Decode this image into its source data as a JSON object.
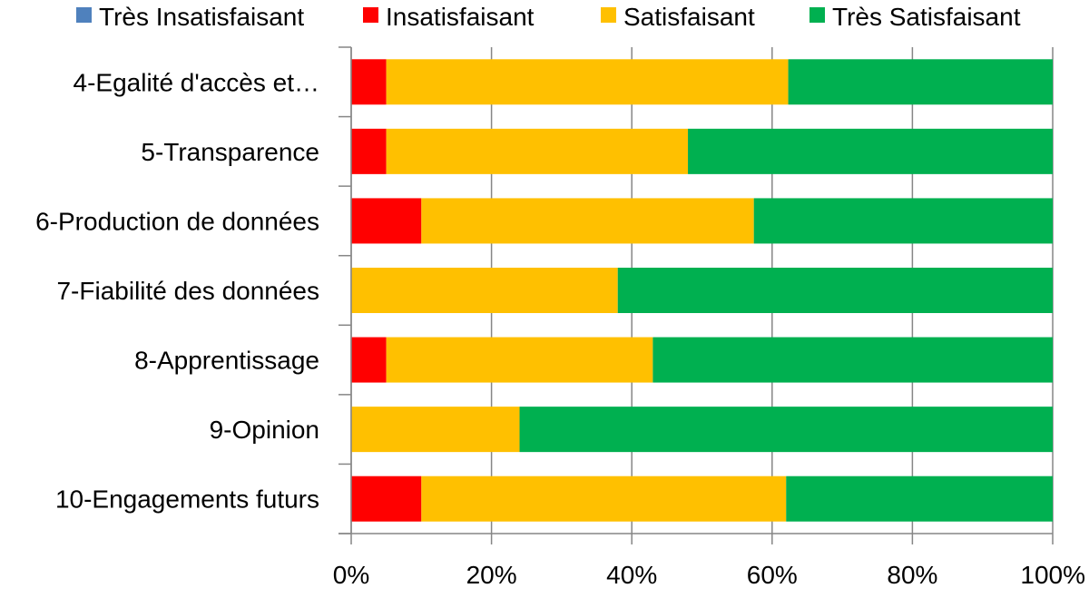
{
  "chart_data": {
    "type": "bar",
    "orientation": "horizontal",
    "stacked": true,
    "normalized": true,
    "categories": [
      "4-Egalité d'accès et…",
      "5-Transparence",
      "6-Production de données",
      "7-Fiabilité des données",
      "8-Apprentissage",
      "9-Opinion",
      "10-Engagements futurs"
    ],
    "series": [
      {
        "name": "Très Insatisfaisant",
        "color": "#4F81BD",
        "values": [
          0,
          0,
          0,
          0,
          0,
          0,
          0
        ]
      },
      {
        "name": "Insatisfaisant",
        "color": "#FF0000",
        "values": [
          5,
          5,
          10,
          0,
          5,
          0,
          10
        ]
      },
      {
        "name": "Satisfaisant",
        "color": "#FFC000",
        "values": [
          57.3,
          43,
          47.4,
          38,
          38,
          24,
          52
        ]
      },
      {
        "name": "Très Satisfaisant",
        "color": "#00B050",
        "values": [
          37.7,
          52,
          42.6,
          62,
          57,
          76,
          38
        ]
      }
    ],
    "xlim": [
      0,
      100
    ],
    "x_ticks": [
      "0%",
      "20%",
      "40%",
      "60%",
      "80%",
      "100%"
    ],
    "x_tick_values": [
      0,
      20,
      40,
      60,
      80,
      100
    ],
    "xlabel": "",
    "ylabel": "",
    "title": "",
    "grid": "vertical",
    "legend_position": "top"
  }
}
